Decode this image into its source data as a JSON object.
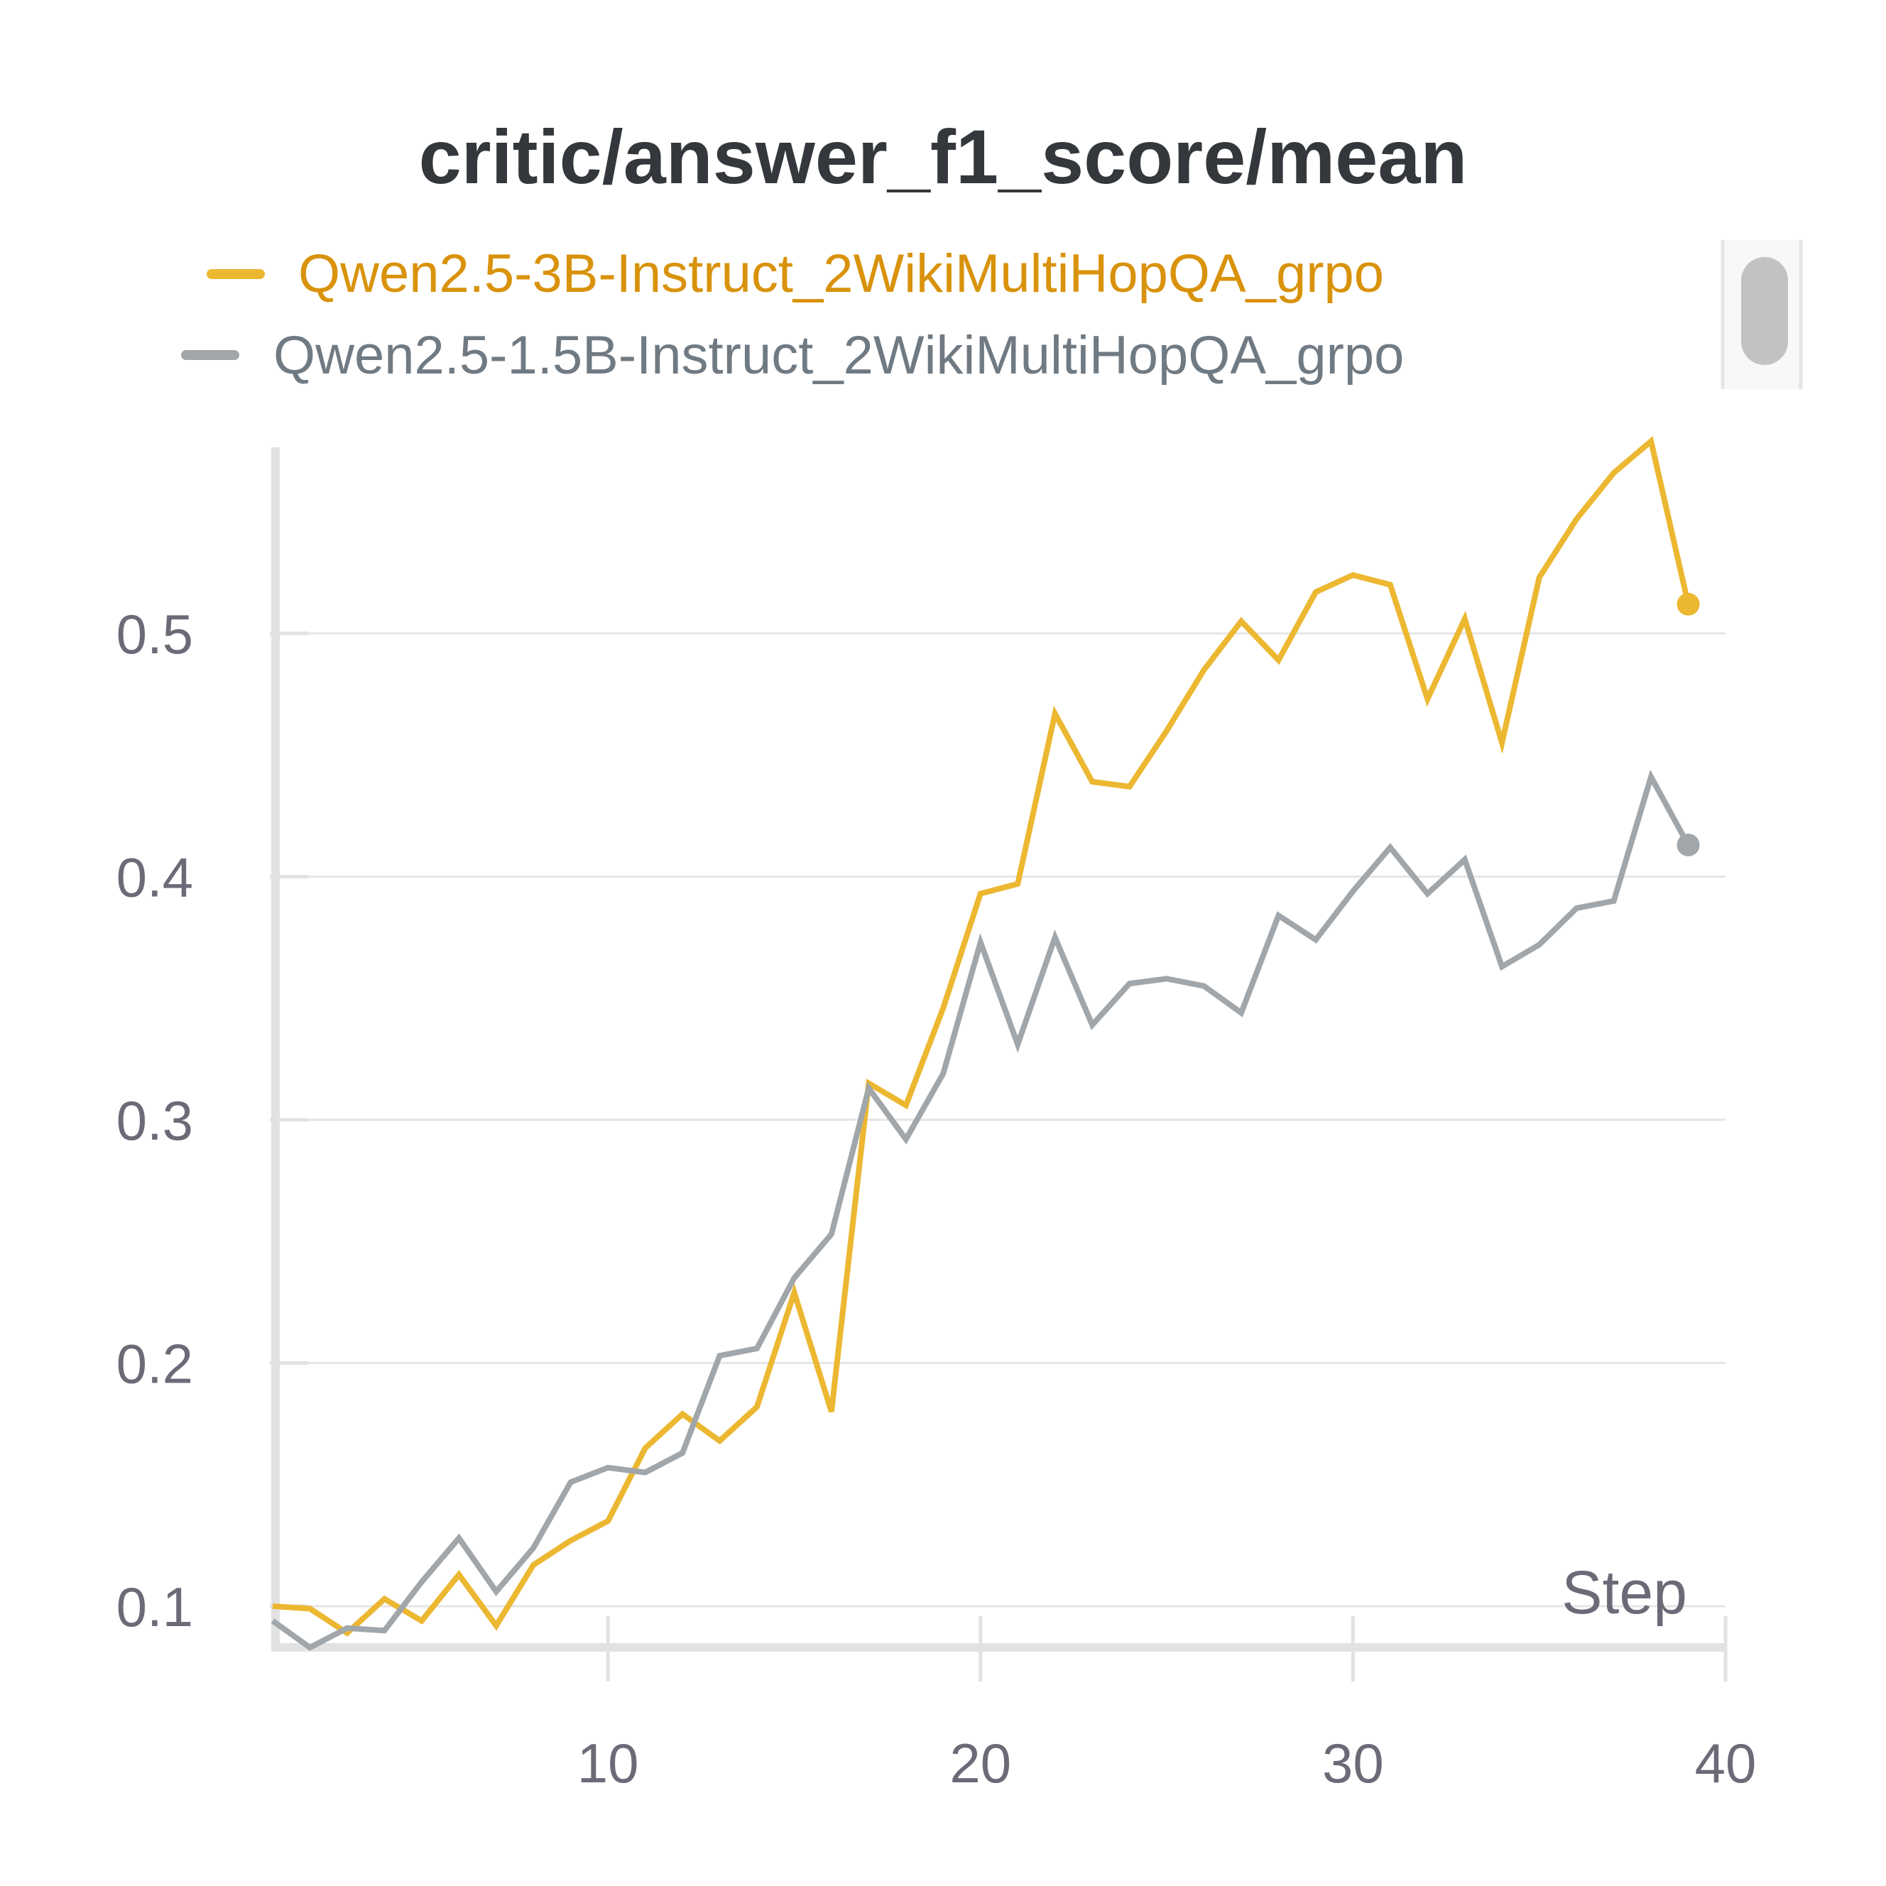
{
  "chart_data": {
    "type": "line",
    "title": "critic/answer_f1_score/mean",
    "xlabel": "Step",
    "ylabel": "",
    "xlim": [
      1,
      40
    ],
    "ylim": [
      0.083,
      0.58
    ],
    "x_ticks": [
      10,
      20,
      30,
      40
    ],
    "x_tick_labels": [
      "10",
      "20",
      "30",
      "40"
    ],
    "y_ticks": [
      0.1,
      0.2,
      0.3,
      0.4,
      0.5
    ],
    "y_tick_labels": [
      "0.1",
      "0.2",
      "0.3",
      "0.4",
      "0.5"
    ],
    "grid": true,
    "legend_position": "top",
    "series": [
      {
        "name": "Qwen2.5-3B-Instruct_2WikiMultiHopQA_grpo",
        "color": "#ecb731",
        "legend_text_color": "#d9920b",
        "x": [
          1,
          2,
          3,
          4,
          5,
          6,
          7,
          8,
          9,
          10,
          11,
          12,
          13,
          14,
          15,
          16,
          17,
          18,
          19,
          20,
          21,
          22,
          23,
          24,
          25,
          26,
          27,
          28,
          29,
          30,
          31,
          32,
          33,
          34,
          35,
          36,
          37,
          38,
          39
        ],
        "values": [
          0.1,
          0.099,
          0.089,
          0.103,
          0.094,
          0.113,
          0.092,
          0.117,
          0.127,
          0.135,
          0.165,
          0.179,
          0.168,
          0.182,
          0.229,
          0.18,
          0.315,
          0.306,
          0.346,
          0.393,
          0.397,
          0.467,
          0.439,
          0.437,
          0.46,
          0.485,
          0.505,
          0.489,
          0.517,
          0.524,
          0.52,
          0.473,
          0.506,
          0.455,
          0.523,
          0.547,
          0.566,
          0.579,
          0.512
        ]
      },
      {
        "name": "Qwen2.5-1.5B-Instruct_2WikiMultiHopQA_grpo",
        "color": "#a1a6aa",
        "legend_text_color": "#707a83",
        "x": [
          1,
          2,
          3,
          4,
          5,
          6,
          7,
          8,
          9,
          10,
          11,
          12,
          13,
          14,
          15,
          16,
          17,
          18,
          19,
          20,
          21,
          22,
          23,
          24,
          25,
          26,
          27,
          28,
          29,
          30,
          31,
          32,
          33,
          34,
          35,
          36,
          37,
          38,
          39
        ],
        "values": [
          0.094,
          0.083,
          0.091,
          0.09,
          0.11,
          0.128,
          0.106,
          0.124,
          0.151,
          0.157,
          0.155,
          0.163,
          0.203,
          0.206,
          0.235,
          0.253,
          0.313,
          0.292,
          0.319,
          0.373,
          0.331,
          0.375,
          0.339,
          0.356,
          0.358,
          0.355,
          0.344,
          0.384,
          0.374,
          0.394,
          0.412,
          0.393,
          0.407,
          0.363,
          0.372,
          0.387,
          0.39,
          0.441,
          0.413
        ]
      }
    ]
  }
}
